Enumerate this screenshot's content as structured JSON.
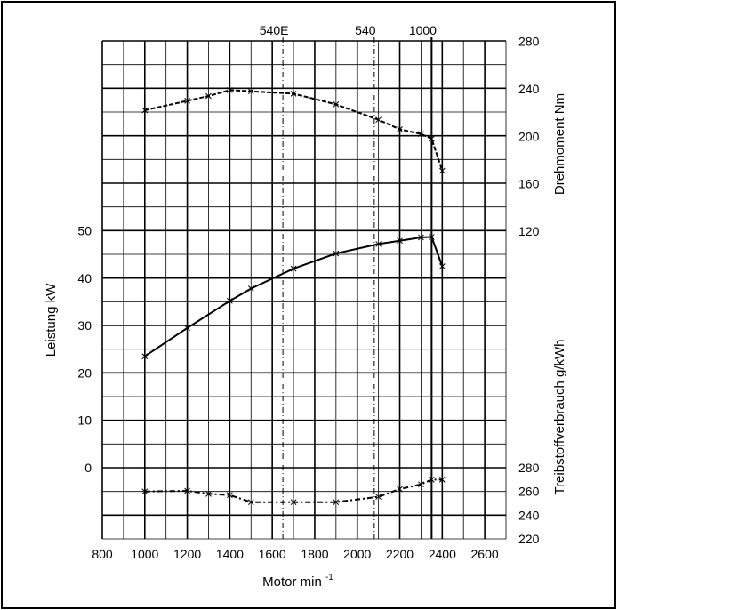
{
  "chart_data": {
    "type": "line",
    "x_axis": {
      "label": "Motor min",
      "label_exponent": "-1",
      "range": [
        800,
        2700
      ],
      "ticks": [
        800,
        1000,
        1200,
        1400,
        1600,
        1800,
        2000,
        2200,
        2400,
        2600
      ]
    },
    "left_axis": {
      "label": "Leistung kW",
      "ticks": [
        0,
        10,
        20,
        30,
        40,
        50
      ]
    },
    "right_axis_torque": {
      "label": "Drehmoment Nm",
      "ticks": [
        160,
        200,
        240,
        280
      ]
    },
    "right_axis_fuel": {
      "label": "Treibstoffverbrauch g/kWh",
      "ticks": [
        220,
        240,
        260,
        280
      ]
    },
    "right_axis_120_label": "120",
    "reference_lines": [
      {
        "x": 1650,
        "label": "540E",
        "style": "dashdot"
      },
      {
        "x": 2080,
        "label": "540",
        "style": "dashdot"
      },
      {
        "x": 2350,
        "label": "1000",
        "style": "solid"
      }
    ],
    "grid": true,
    "series": [
      {
        "axis": "torque",
        "style": "dashed-marker",
        "x": [
          1000,
          1200,
          1300,
          1400,
          1500,
          1700,
          1900,
          2100,
          2200,
          2300,
          2350,
          2400
        ],
        "y": [
          222,
          230,
          234,
          239,
          238,
          236,
          227,
          214,
          206,
          202,
          198,
          171
        ]
      },
      {
        "axis": "power",
        "style": "solid-marker",
        "x": [
          1000,
          1200,
          1400,
          1500,
          1700,
          1900,
          2100,
          2200,
          2300,
          2350,
          2400
        ],
        "y": [
          23.5,
          29.5,
          35.2,
          37.8,
          42.0,
          45.2,
          47.2,
          47.9,
          48.6,
          48.7,
          42.5
        ]
      },
      {
        "axis": "fuel",
        "style": "dashdot-marker",
        "x": [
          1000,
          1200,
          1300,
          1400,
          1500,
          1700,
          1900,
          2100,
          2200,
          2300,
          2350,
          2400
        ],
        "y": [
          260,
          260.5,
          258,
          257,
          251,
          251,
          251,
          255.5,
          262,
          266,
          270,
          270
        ]
      }
    ]
  }
}
